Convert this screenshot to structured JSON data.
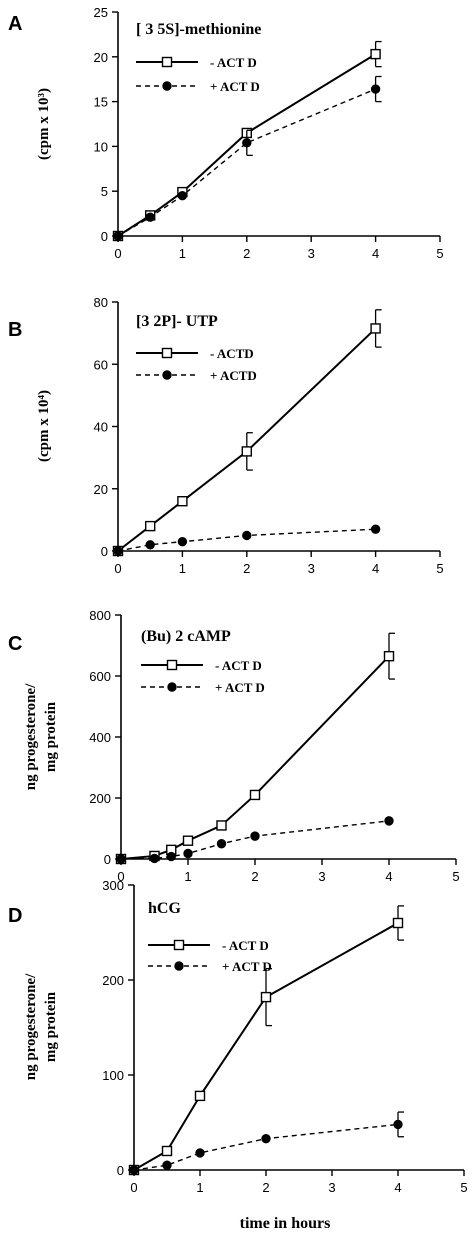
{
  "figure": {
    "xlabel": "time in hours"
  },
  "chart_data": [
    {
      "type": "line",
      "panel": "A",
      "title": "[ 3 5S]-methionine",
      "ylabel": "(cpm x 10³)",
      "xlim": [
        0,
        5
      ],
      "ylim": [
        0,
        25
      ],
      "xticks": [
        0,
        1,
        2,
        3,
        4,
        5
      ],
      "yticks": [
        0,
        5,
        10,
        15,
        20,
        25
      ],
      "legend_position": "top-left",
      "series": [
        {
          "name": "- ACT D",
          "style": "solid-open-square",
          "x": [
            0,
            0.5,
            1,
            2,
            4
          ],
          "y": [
            0,
            2.3,
            4.9,
            11.5,
            20.3
          ],
          "err": [
            0,
            0,
            0,
            0,
            1.4
          ]
        },
        {
          "name": "+ ACT D",
          "style": "dashed-filled-circle",
          "x": [
            0,
            0.5,
            1,
            2,
            4
          ],
          "y": [
            0,
            2.1,
            4.5,
            10.4,
            16.4
          ],
          "err": [
            0,
            0,
            0,
            1.4,
            1.4
          ]
        }
      ]
    },
    {
      "type": "line",
      "panel": "B",
      "title": "[3 2P]-  UTP",
      "ylabel": "(cpm x 10⁴)",
      "xlim": [
        0,
        5
      ],
      "ylim": [
        0,
        80
      ],
      "xticks": [
        0,
        1,
        2,
        3,
        4,
        5
      ],
      "yticks": [
        0,
        20,
        40,
        60,
        80
      ],
      "legend_position": "top-left",
      "series": [
        {
          "name": "- ACTD",
          "style": "solid-open-square",
          "x": [
            0,
            0.5,
            1,
            2,
            4
          ],
          "y": [
            0,
            8,
            16,
            32,
            71.5
          ],
          "err": [
            0,
            0,
            0,
            6,
            6
          ]
        },
        {
          "name": "+ ACTD",
          "style": "dashed-filled-circle",
          "x": [
            0,
            0.5,
            1,
            2,
            4
          ],
          "y": [
            0,
            2,
            3,
            5,
            7
          ],
          "err": [
            0,
            0,
            0,
            0,
            0
          ]
        }
      ]
    },
    {
      "type": "line",
      "panel": "C",
      "title": "(Bu) 2 cAMP",
      "ylabel": "ng  progesterone/ mg protein",
      "xlim": [
        0,
        5
      ],
      "ylim": [
        0,
        800
      ],
      "xticks": [
        0,
        1,
        2,
        3,
        4,
        5
      ],
      "yticks": [
        0,
        200,
        400,
        600,
        800
      ],
      "legend_position": "top-left",
      "series": [
        {
          "name": "- ACT D",
          "style": "solid-open-square",
          "x": [
            0,
            0.5,
            0.75,
            1,
            1.5,
            2,
            4
          ],
          "y": [
            0,
            10,
            30,
            60,
            110,
            210,
            665
          ],
          "err": [
            0,
            0,
            0,
            0,
            0,
            0,
            75
          ]
        },
        {
          "name": "+ ACT D",
          "style": "dashed-filled-circle",
          "x": [
            0,
            0.5,
            0.75,
            1,
            1.5,
            2,
            4
          ],
          "y": [
            0,
            2,
            8,
            18,
            50,
            75,
            125
          ],
          "err": [
            0,
            0,
            0,
            0,
            0,
            0,
            0
          ]
        }
      ]
    },
    {
      "type": "line",
      "panel": "D",
      "title": "hCG",
      "ylabel": "ng  progesterone/ mg protein",
      "xlim": [
        0,
        5
      ],
      "ylim": [
        0,
        300
      ],
      "xticks": [
        0,
        1,
        2,
        3,
        4,
        5
      ],
      "yticks": [
        0,
        100,
        200,
        300
      ],
      "legend_position": "top-left",
      "series": [
        {
          "name": "- ACT D",
          "style": "solid-open-square",
          "x": [
            0,
            0.5,
            1,
            2,
            4
          ],
          "y": [
            0,
            20,
            78,
            182,
            260
          ],
          "err": [
            0,
            0,
            0,
            30,
            18
          ]
        },
        {
          "name": "+ ACT D",
          "style": "dashed-filled-circle",
          "x": [
            0,
            0.5,
            1,
            2,
            4
          ],
          "y": [
            0,
            5,
            18,
            33,
            48
          ],
          "err": [
            0,
            0,
            0,
            0,
            13
          ]
        }
      ]
    }
  ]
}
